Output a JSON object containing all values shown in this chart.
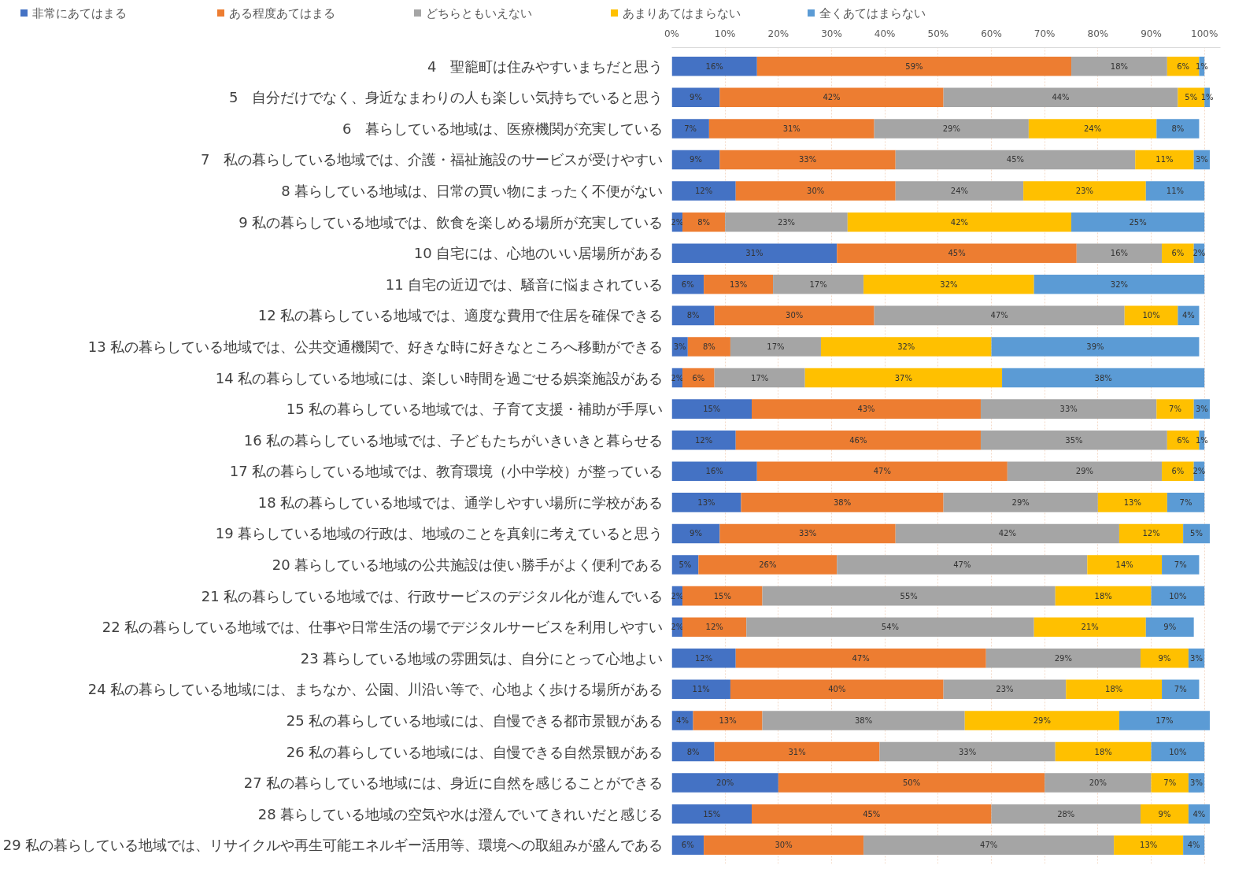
{
  "chart_data": {
    "type": "bar",
    "orientation": "horizontal",
    "stacked": true,
    "categories": [
      "4　聖籠町は住みやすいまちだと思う",
      "5　自分だけでなく、身近なまわりの人も楽しい気持ちでいると思う",
      "6　暮らしている地域は、医療機関が充実している",
      "7　私の暮らしている地域では、介護・福祉施設のサービスが受けやすい",
      "8 暮らしている地域は、日常の買い物にまったく不便がない",
      "9 私の暮らしている地域では、飲食を楽しめる場所が充実している",
      "10 自宅には、心地のいい居場所がある",
      "11 自宅の近辺では、騒音に悩まされている",
      "12 私の暮らしている地域では、適度な費用で住居を確保できる",
      "13 私の暮らしている地域では、公共交通機関で、好きな時に好きなところへ移動ができる",
      "14 私の暮らしている地域には、楽しい時間を過ごせる娯楽施設がある",
      "15 私の暮らしている地域では、子育て支援・補助が手厚い",
      "16 私の暮らしている地域では、子どもたちがいきいきと暮らせる",
      "17 私の暮らしている地域では、教育環境（小中学校）が整っている",
      "18 私の暮らしている地域では、通学しやすい場所に学校がある",
      "19 暮らしている地域の行政は、地域のことを真剣に考えていると思う",
      "20 暮らしている地域の公共施設は使い勝手がよく便利である",
      "21 私の暮らしている地域では、行政サービスのデジタル化が進んでいる",
      "22 私の暮らしている地域では、仕事や日常生活の場でデジタルサービスを利用しやすい",
      "23 暮らしている地域の雰囲気は、自分にとって心地よい",
      "24 私の暮らしている地域には、まちなか、公園、川沿い等で、心地よく歩ける場所がある",
      "25 私の暮らしている地域には、自慢できる都市景観がある",
      "26 私の暮らしている地域には、自慢できる自然景観がある",
      "27 私の暮らしている地域には、身近に自然を感じることができる",
      "28 暮らしている地域の空気や水は澄んでいてきれいだと感じる",
      "29 私の暮らしている地域では、リサイクルや再生可能エネルギー活用等、環境への取組みが盛んである"
    ],
    "series": [
      {
        "name": "非常にあてはまる",
        "color": "#4472c4",
        "values": [
          16,
          9,
          7,
          9,
          12,
          2,
          31,
          6,
          8,
          3,
          2,
          15,
          12,
          16,
          13,
          9,
          5,
          2,
          2,
          12,
          11,
          4,
          8,
          20,
          15,
          6
        ],
        "value_labels": [
          "16%",
          "9%",
          "7%",
          "9%",
          "12%",
          "2%",
          "31%",
          "6%",
          "8%",
          "3%",
          "2%",
          "15%",
          "12%",
          "16%",
          "13%",
          "9%",
          "5%",
          "2%",
          "2%",
          "12%",
          "11%",
          "4%",
          "8%",
          "20%",
          "15%",
          "6%"
        ]
      },
      {
        "name": "ある程度あてはまる",
        "color": "#ed7d31",
        "values": [
          59,
          42,
          31,
          33,
          30,
          8,
          45,
          13,
          30,
          8,
          6,
          43,
          46,
          47,
          38,
          33,
          26,
          15,
          12,
          47,
          40,
          13,
          31,
          50,
          45,
          30
        ],
        "value_labels": [
          "59%",
          "42%",
          "31%",
          "33%",
          "30%",
          "8%",
          "45%",
          "13%",
          "30%",
          "8%",
          "6%",
          "43%",
          "46%",
          "47%",
          "38%",
          "33%",
          "26%",
          "15%",
          "12%",
          "47%",
          "40%",
          "13%",
          "31%",
          "50%",
          "45%",
          "30%"
        ]
      },
      {
        "name": "どちらともいえない",
        "color": "#a5a5a5",
        "values": [
          18,
          44,
          29,
          45,
          24,
          23,
          16,
          17,
          47,
          17,
          17,
          33,
          35,
          29,
          29,
          42,
          47,
          55,
          54,
          29,
          23,
          38,
          33,
          20,
          28,
          47
        ],
        "value_labels": [
          "18%",
          "44%",
          "29%",
          "45%",
          "24%",
          "23%",
          "16%",
          "17%",
          "47%",
          "17%",
          "17%",
          "33%",
          "35%",
          "29%",
          "29%",
          "42%",
          "47%",
          "55%",
          "54%",
          "29%",
          "23%",
          "38%",
          "33%",
          "20%",
          "28%",
          "47%"
        ]
      },
      {
        "name": "あまりあてはまらない",
        "color": "#ffc000",
        "values": [
          6,
          5,
          24,
          11,
          23,
          42,
          6,
          32,
          10,
          32,
          37,
          7,
          6,
          6,
          13,
          12,
          14,
          18,
          21,
          9,
          18,
          29,
          18,
          7,
          9,
          13
        ],
        "value_labels": [
          "6%",
          "5%",
          "24%",
          "11%",
          "23%",
          "42%",
          "6%",
          "32%",
          "10%",
          "32%",
          "37%",
          "7%",
          "6%",
          "6%",
          "13%",
          "12%",
          "14%",
          "18%",
          "21%",
          "9%",
          "18%",
          "29%",
          "18%",
          "7%",
          "9%",
          "13%"
        ]
      },
      {
        "name": "全くあてはまらない",
        "color": "#5b9bd5",
        "values": [
          1,
          1,
          8,
          3,
          11,
          25,
          2,
          32,
          4,
          39,
          38,
          3,
          1,
          2,
          7,
          5,
          7,
          10,
          9,
          3,
          7,
          17,
          10,
          3,
          4,
          4
        ],
        "value_labels": [
          "1%",
          "1%",
          "8%",
          "3%",
          "11%",
          "25%",
          "2%",
          "32%",
          "4%",
          "39%",
          "38%",
          "3%",
          "1%",
          "2%",
          "7%",
          "5%",
          "7%",
          "10%",
          "9%",
          "3%",
          "7%",
          "17%",
          "10%",
          "3%",
          "4%",
          "4%"
        ]
      }
    ],
    "xlim": [
      0,
      103
    ],
    "xticks": [
      {
        "value": 0,
        "label": "0%"
      },
      {
        "value": 10,
        "label": "10%"
      },
      {
        "value": 20,
        "label": "20%"
      },
      {
        "value": 30,
        "label": "30%"
      },
      {
        "value": 40,
        "label": "40%"
      },
      {
        "value": 50,
        "label": "50%"
      },
      {
        "value": 60,
        "label": "60%"
      },
      {
        "value": 70,
        "label": "70%"
      },
      {
        "value": 80,
        "label": "80%"
      },
      {
        "value": 90,
        "label": "90%"
      },
      {
        "value": 100,
        "label": "100%"
      }
    ],
    "grid": "x",
    "legend": "top left"
  }
}
